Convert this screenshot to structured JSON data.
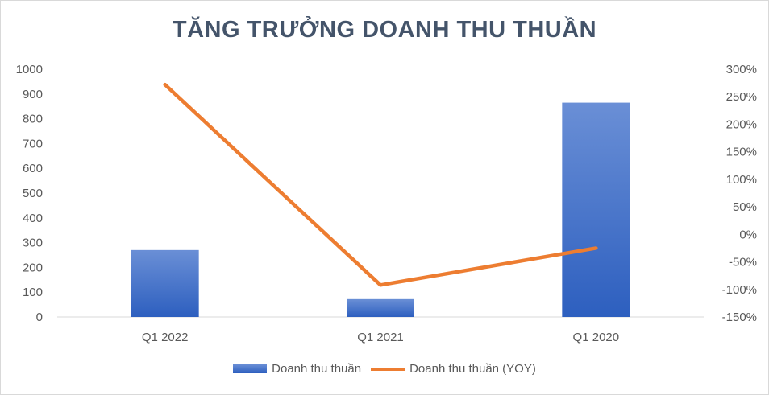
{
  "chart_data": {
    "type": "bar",
    "title": "TĂNG TRƯỞNG DOANH THU THUẦN",
    "categories": [
      "Q1 2022",
      "Q1 2021",
      "Q1 2020"
    ],
    "series": [
      {
        "name": "Doanh thu thuần",
        "type": "bar",
        "axis": "left",
        "values": [
          270,
          72,
          865
        ],
        "color": "#4472c4"
      },
      {
        "name": "Doanh thu thuần (YOY)",
        "type": "line",
        "axis": "right",
        "values": [
          272,
          -92,
          -25
        ],
        "color": "#ed7d31"
      }
    ],
    "ylim": [
      0,
      1000
    ],
    "yticks": [
      "0",
      "100",
      "200",
      "300",
      "400",
      "500",
      "600",
      "700",
      "800",
      "900",
      "1000"
    ],
    "y2lim": [
      -150,
      300
    ],
    "y2ticks": [
      "-150%",
      "-100%",
      "-50%",
      "0%",
      "50%",
      "100%",
      "150%",
      "200%",
      "250%",
      "300%"
    ],
    "legend_position": "bottom",
    "grid": false
  }
}
